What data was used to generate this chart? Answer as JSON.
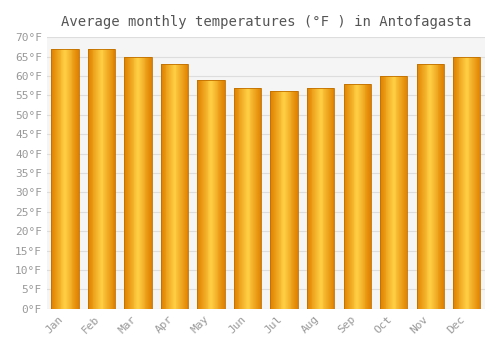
{
  "title": "Average monthly temperatures (°F ) in Antofagasta",
  "months": [
    "Jan",
    "Feb",
    "Mar",
    "Apr",
    "May",
    "Jun",
    "Jul",
    "Aug",
    "Sep",
    "Oct",
    "Nov",
    "Dec"
  ],
  "values": [
    67,
    67,
    65,
    63,
    59,
    57,
    56,
    57,
    58,
    60,
    63,
    65
  ],
  "bar_color_center": "#FFB300",
  "bar_color_edge_dark": "#E08000",
  "bar_color_highlight": "#FFD966",
  "background_color": "#FFFFFF",
  "plot_bg_color": "#F5F5F5",
  "grid_color": "#DDDDDD",
  "ylim": [
    0,
    70
  ],
  "ytick_step": 5,
  "title_fontsize": 10,
  "tick_fontsize": 8,
  "tick_font_color": "#999999",
  "bar_width": 0.75,
  "figsize": [
    5.0,
    3.5
  ],
  "dpi": 100
}
